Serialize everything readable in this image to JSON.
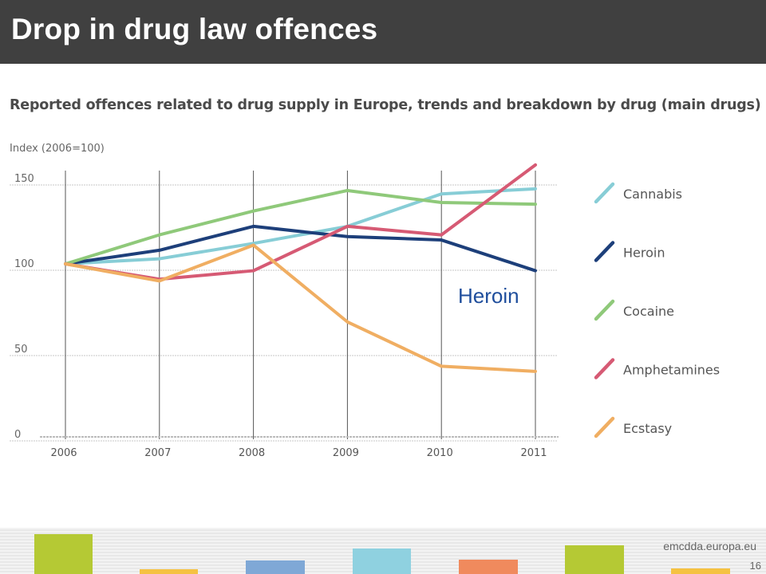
{
  "slide": {
    "title": "Drop in drug law offences",
    "url": "emcdda.europa.eu",
    "page_number": "16"
  },
  "annotation": {
    "text": "Heroin",
    "color": "#1f4e9c"
  },
  "footer_bars": [
    {
      "color": "#b5c934"
    },
    {
      "color": "#f5c242"
    },
    {
      "color": "#7fa8d6"
    },
    {
      "color": "#8fd1e0"
    },
    {
      "color": "#f08a5d"
    },
    {
      "color": "#b5c934"
    },
    {
      "color": "#f5c242"
    }
  ],
  "chart_data": {
    "type": "line",
    "title": "Reported offences related to drug supply in Europe, trends and breakdown by drug (main drugs)",
    "ylabel": "Index (2006=100)",
    "xlabel": "",
    "x": [
      "2006",
      "2007",
      "2008",
      "2009",
      "2010",
      "2011"
    ],
    "ylim": [
      0,
      150
    ],
    "yticks": [
      "150",
      "100",
      "50",
      "0"
    ],
    "grid": "vertical",
    "legend_position": "right",
    "series": [
      {
        "name": "Cannabis",
        "color": "#87cdd6",
        "values": [
          100,
          103,
          112,
          122,
          141,
          144
        ]
      },
      {
        "name": "Heroin",
        "color": "#1d3f7a",
        "values": [
          100,
          108,
          122,
          116,
          114,
          96
        ]
      },
      {
        "name": "Cocaine",
        "color": "#8fc97a",
        "values": [
          100,
          117,
          131,
          143,
          136,
          135
        ]
      },
      {
        "name": "Amphetamines",
        "color": "#d65a74",
        "values": [
          100,
          91,
          96,
          122,
          117,
          158
        ]
      },
      {
        "name": "Ecstasy",
        "color": "#f0ae62",
        "values": [
          100,
          90,
          111,
          66,
          40,
          37
        ]
      }
    ]
  }
}
